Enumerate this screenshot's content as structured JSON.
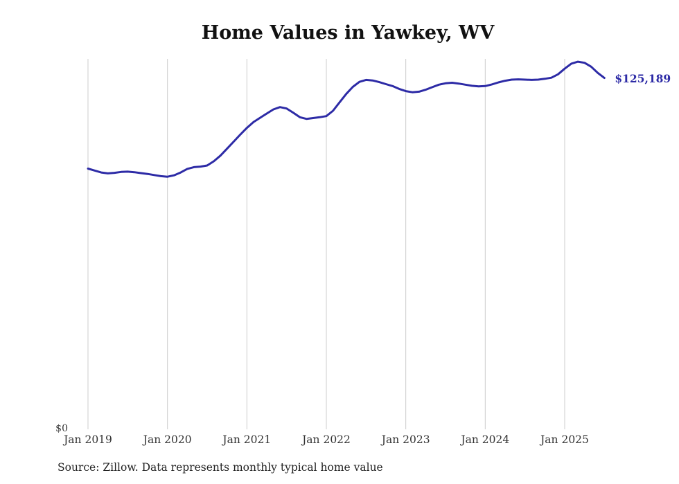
{
  "chart_data": {
    "type": "line",
    "title": "Home Values in Yawkey, WV",
    "series_name": "Monthly typical home value",
    "months": [
      "2019-01",
      "2019-02",
      "2019-03",
      "2019-04",
      "2019-05",
      "2019-06",
      "2019-07",
      "2019-08",
      "2019-09",
      "2019-10",
      "2019-11",
      "2019-12",
      "2020-01",
      "2020-02",
      "2020-03",
      "2020-04",
      "2020-05",
      "2020-06",
      "2020-07",
      "2020-08",
      "2020-09",
      "2020-10",
      "2020-11",
      "2020-12",
      "2021-01",
      "2021-02",
      "2021-03",
      "2021-04",
      "2021-05",
      "2021-06",
      "2021-07",
      "2021-08",
      "2021-09",
      "2021-10",
      "2021-11",
      "2021-12",
      "2022-01",
      "2022-02",
      "2022-03",
      "2022-04",
      "2022-05",
      "2022-06",
      "2022-07",
      "2022-08",
      "2022-09",
      "2022-10",
      "2022-11",
      "2022-12",
      "2023-01",
      "2023-02",
      "2023-03",
      "2023-04",
      "2023-05",
      "2023-06",
      "2023-07",
      "2023-08",
      "2023-09",
      "2023-10",
      "2023-11",
      "2023-12",
      "2024-01",
      "2024-02",
      "2024-03",
      "2024-04",
      "2024-05",
      "2024-06",
      "2024-07",
      "2024-08",
      "2024-09",
      "2024-10",
      "2024-11",
      "2024-12",
      "2025-01",
      "2025-02",
      "2025-03",
      "2025-04",
      "2025-05",
      "2025-06",
      "2025-07"
    ],
    "values": [
      92900,
      92200,
      91500,
      91200,
      91400,
      91700,
      91800,
      91600,
      91300,
      91000,
      90600,
      90200,
      90000,
      90500,
      91500,
      92800,
      93400,
      93600,
      94000,
      95500,
      97500,
      100000,
      102500,
      105000,
      107400,
      109500,
      111000,
      112500,
      114000,
      114800,
      114300,
      112800,
      111200,
      110600,
      110900,
      111200,
      111600,
      113500,
      116500,
      119500,
      122000,
      123800,
      124500,
      124300,
      123700,
      123000,
      122300,
      121300,
      120500,
      120100,
      120300,
      121000,
      121900,
      122800,
      123300,
      123500,
      123200,
      122800,
      122400,
      122200,
      122300,
      122900,
      123600,
      124200,
      124600,
      124700,
      124600,
      124500,
      124600,
      124900,
      125300,
      126500,
      128500,
      130300,
      131000,
      130600,
      129200,
      127000,
      125189
    ],
    "x_ticks": [
      "Jan 2019",
      "Jan 2020",
      "Jan 2021",
      "Jan 2022",
      "Jan 2023",
      "Jan 2024",
      "Jan 2025"
    ],
    "ylim": [
      0,
      132000
    ],
    "y_axis_min_label": "$0",
    "latest_value": 125189,
    "end_label": "$125,189",
    "line_color": "#2d2ba6",
    "grid_color": "#cccccc",
    "grid": "vertical-only",
    "legend": "none",
    "source_note": "Source: Zillow. Data represents monthly typical home value"
  }
}
